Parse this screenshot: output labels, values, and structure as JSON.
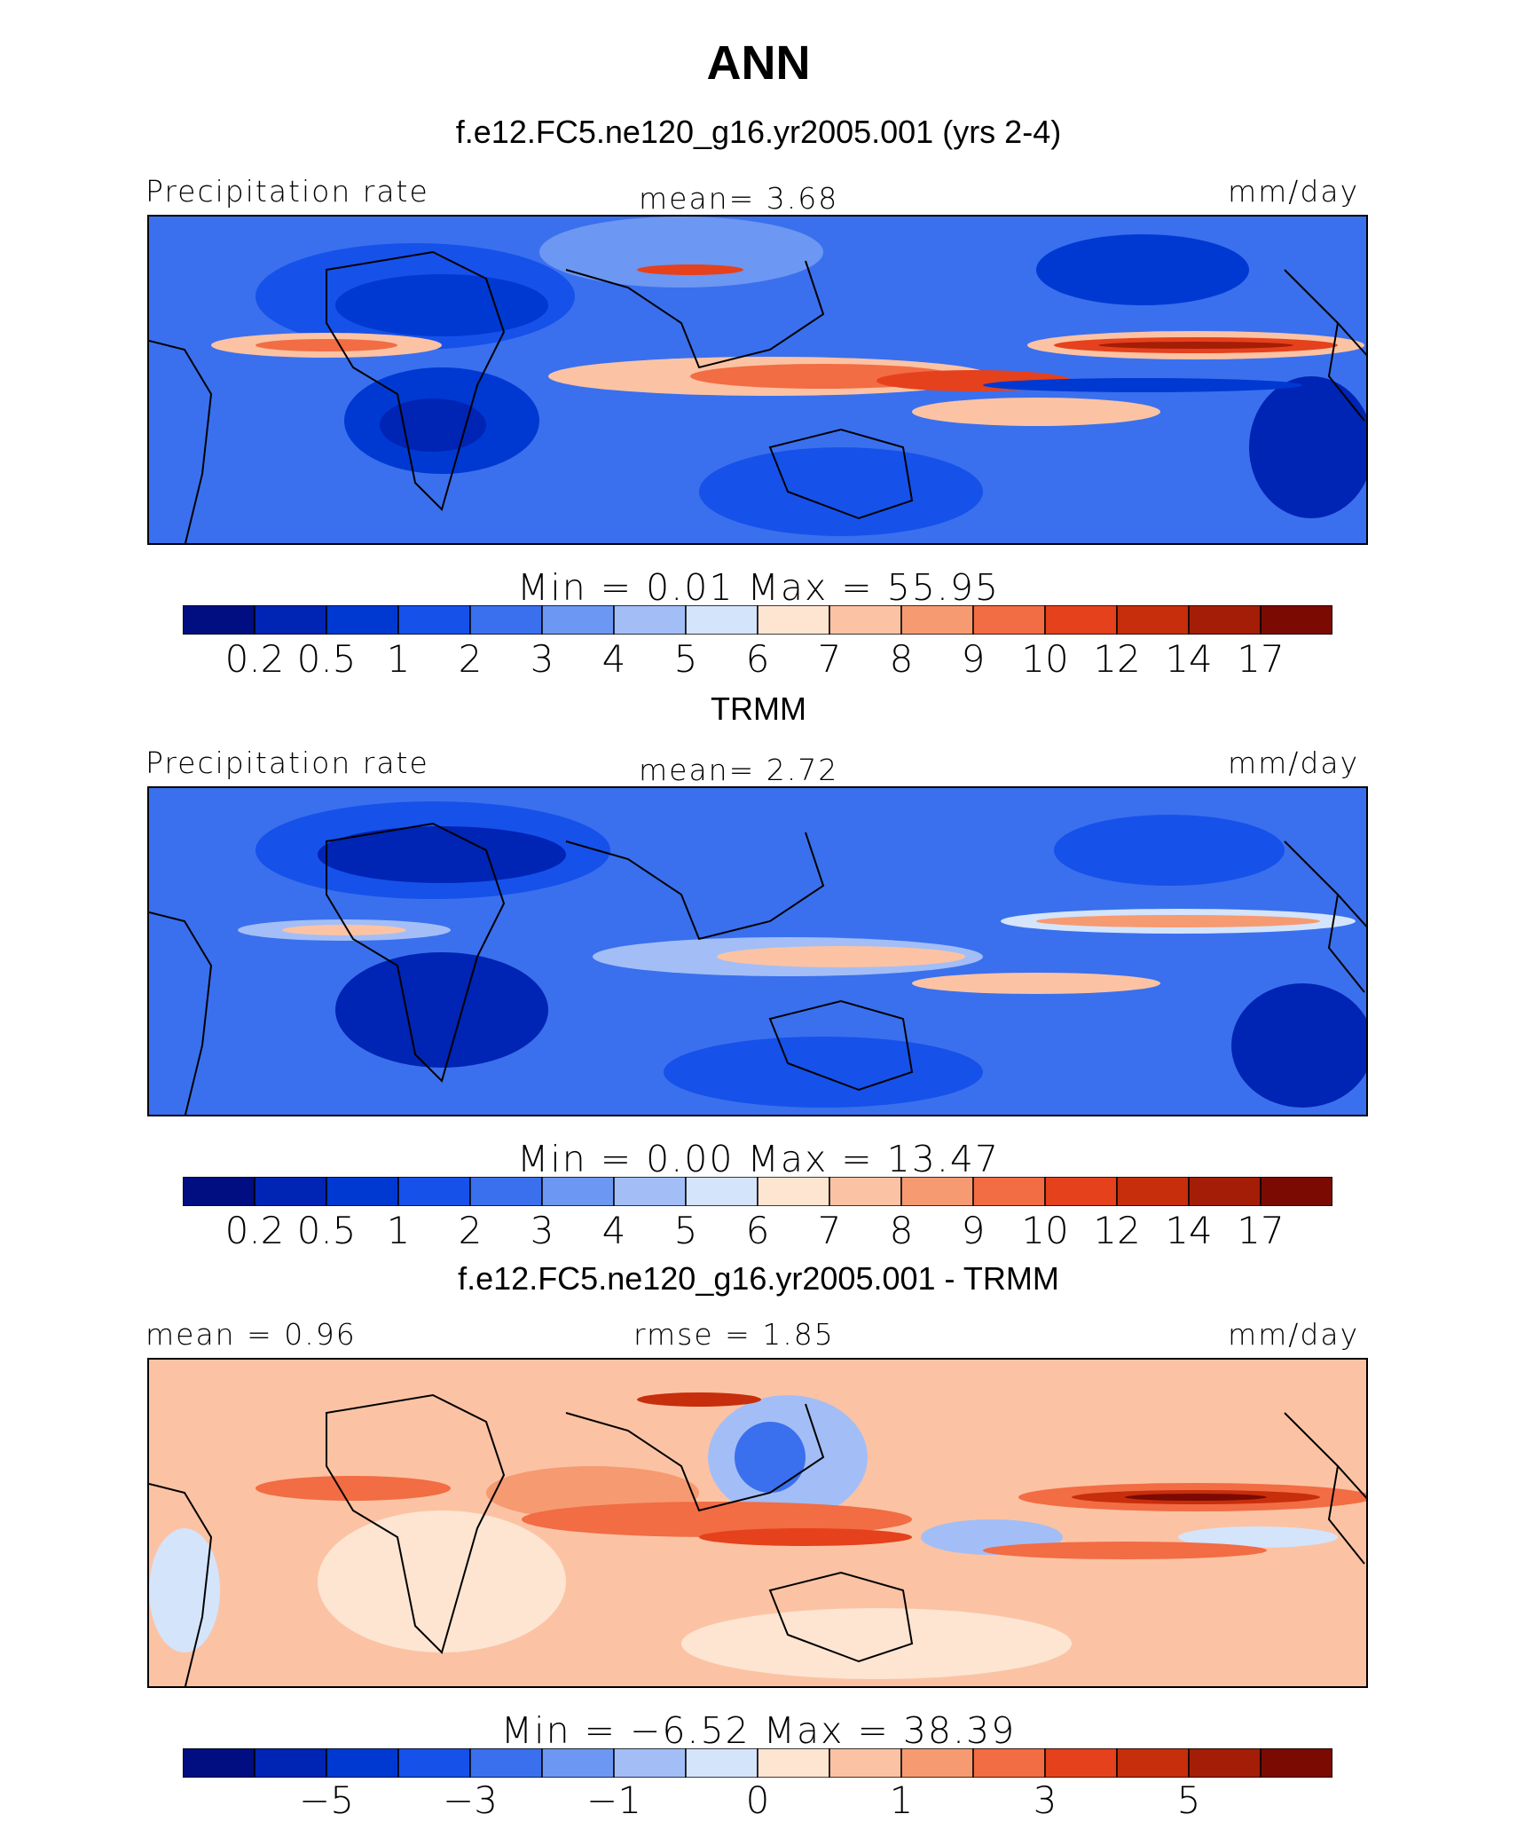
{
  "figure_title": "ANN",
  "colors": {
    "precip_scale": [
      "#000e82",
      "#0024b4",
      "#0039d2",
      "#1651ea",
      "#3a70ee",
      "#6c97f2",
      "#a3bef6",
      "#d4e4fb",
      "#fde5d2",
      "#fbc3a4",
      "#f69a71",
      "#f26c44",
      "#e5411c",
      "#c72e0c",
      "#a41d06",
      "#7a0a02"
    ],
    "coast": "#000000"
  },
  "panels": [
    {
      "title": "f.e12.FC5.ne120_g16.yr2005.001 (yrs 2-4)",
      "left_label": "Precipitation rate",
      "center_label": "mean=   3.68",
      "right_label": "mm/day",
      "min_max": "Min  =    0.01  Max  =    55.95",
      "colorbar_ticks": [
        "0.2",
        "0.5",
        "1",
        "2",
        "3",
        "4",
        "5",
        "6",
        "7",
        "8",
        "9",
        "10",
        "12",
        "14",
        "17"
      ]
    },
    {
      "title": "TRMM",
      "left_label": "Precipitation rate",
      "center_label": "mean=   2.72",
      "right_label": "mm/day",
      "min_max": "Min  =    0.00  Max  =    13.47",
      "colorbar_ticks": [
        "0.2",
        "0.5",
        "1",
        "2",
        "3",
        "4",
        "5",
        "6",
        "7",
        "8",
        "9",
        "10",
        "12",
        "14",
        "17"
      ]
    },
    {
      "title": "f.e12.FC5.ne120_g16.yr2005.001 - TRMM",
      "left_label": "mean =   0.96",
      "center_label": "rmse =   1.85",
      "right_label": "mm/day",
      "min_max": "Min  =  −6.52  Max  =   38.39",
      "colorbar_ticks": [
        "−5",
        "−3",
        "−1",
        "0",
        "1",
        "3",
        "5"
      ]
    }
  ],
  "chart_data": [
    {
      "type": "heatmap",
      "title": "f.e12.FC5.ne120_g16.yr2005.001 (yrs 2-4)",
      "variable": "Precipitation rate",
      "units": "mm/day",
      "mean": 3.68,
      "min": 0.01,
      "max": 55.95,
      "contour_levels": [
        0.2,
        0.5,
        1,
        2,
        3,
        4,
        5,
        6,
        7,
        8,
        9,
        10,
        12,
        14,
        17
      ]
    },
    {
      "type": "heatmap",
      "title": "TRMM",
      "variable": "Precipitation rate",
      "units": "mm/day",
      "mean": 2.72,
      "min": 0.0,
      "max": 13.47,
      "contour_levels": [
        0.2,
        0.5,
        1,
        2,
        3,
        4,
        5,
        6,
        7,
        8,
        9,
        10,
        12,
        14,
        17
      ]
    },
    {
      "type": "heatmap",
      "title": "f.e12.FC5.ne120_g16.yr2005.001 - TRMM",
      "units": "mm/day",
      "mean": 0.96,
      "rmse": 1.85,
      "min": -6.52,
      "max": 38.39,
      "contour_levels": [
        -5,
        -4,
        -3,
        -2,
        -1,
        -0.5,
        0,
        0.5,
        1,
        2,
        3,
        4,
        5
      ],
      "labeled_levels": [
        -5,
        -3,
        -1,
        0,
        1,
        3,
        5
      ]
    }
  ]
}
